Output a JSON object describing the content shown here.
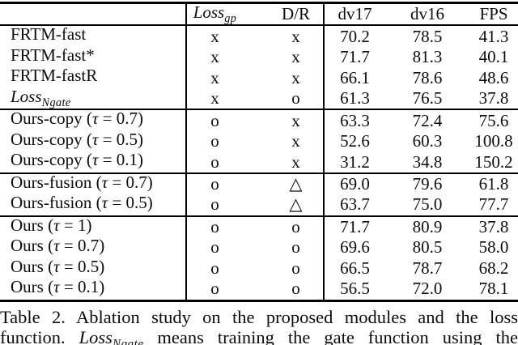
{
  "page": {
    "background": "#ffffff",
    "text_color": "#0d0d0d",
    "rule_color": "#000000"
  },
  "table": {
    "header": {
      "loss_gp": {
        "math": "Loss",
        "sub": "gp"
      },
      "dr": "D/R",
      "dv17": "dv17",
      "dv16": "dv16",
      "fps": "FPS"
    },
    "groups": [
      {
        "rows": [
          {
            "label": {
              "pre": "FRTM-fast"
            },
            "m1": "x",
            "m2": "x",
            "v1": "70.2",
            "v2": "78.5",
            "v3": "41.3"
          },
          {
            "label": {
              "pre": "FRTM-fast*"
            },
            "m1": "x",
            "m2": "x",
            "v1": "71.7",
            "v2": "81.3",
            "v3": "40.1"
          },
          {
            "label": {
              "pre": "FRTM-fastR"
            },
            "m1": "x",
            "m2": "x",
            "v1": "66.1",
            "v2": "78.6",
            "v3": "48.6"
          },
          {
            "label": {
              "math": "Loss",
              "sub": "Ngate"
            },
            "m1": "x",
            "m2": "o",
            "v1": "61.3",
            "v2": "76.5",
            "v3": "37.8"
          }
        ]
      },
      {
        "rows": [
          {
            "label": {
              "pre": "Ours-copy (",
              "math": "τ",
              "post": " = 0.7)"
            },
            "m1": "o",
            "m2": "x",
            "v1": "63.3",
            "v2": "72.4",
            "v3": "75.6"
          },
          {
            "label": {
              "pre": "Ours-copy (",
              "math": "τ",
              "post": " = 0.5)"
            },
            "m1": "o",
            "m2": "x",
            "v1": "52.6",
            "v2": "60.3",
            "v3": "100.8"
          },
          {
            "label": {
              "pre": "Ours-copy (",
              "math": "τ",
              "post": " = 0.1)"
            },
            "m1": "o",
            "m2": "x",
            "v1": "31.2",
            "v2": "34.8",
            "v3": "150.2"
          }
        ]
      },
      {
        "rows": [
          {
            "label": {
              "pre": "Ours-fusion (",
              "math": "τ",
              "post": " = 0.7)"
            },
            "m1": "o",
            "m2": "△",
            "v1": "69.0",
            "v2": "79.6",
            "v3": "61.8"
          },
          {
            "label": {
              "pre": "Ours-fusion (",
              "math": "τ",
              "post": " = 0.5)"
            },
            "m1": "o",
            "m2": "△",
            "v1": "63.7",
            "v2": "75.0",
            "v3": "77.7"
          }
        ]
      },
      {
        "rows": [
          {
            "label": {
              "pre": "Ours (",
              "math": "τ",
              "post": " = 1)"
            },
            "m1": "o",
            "m2": "o",
            "v1": "71.7",
            "v2": "80.9",
            "v3": "37.8"
          },
          {
            "label": {
              "pre": "Ours (",
              "math": "τ",
              "post": " = 0.7)"
            },
            "m1": "o",
            "m2": "o",
            "v1": "69.6",
            "v2": "80.5",
            "v3": "58.0"
          },
          {
            "label": {
              "pre": "Ours (",
              "math": "τ",
              "post": " = 0.5)"
            },
            "m1": "o",
            "m2": "o",
            "v1": "66.5",
            "v2": "78.7",
            "v3": "68.2"
          },
          {
            "label": {
              "pre": "Ours (",
              "math": "τ",
              "post": " = 0.1)"
            },
            "m1": "o",
            "m2": "o",
            "v1": "56.5",
            "v2": "72.0",
            "v3": "78.1"
          }
        ]
      }
    ]
  },
  "caption": {
    "line1": "Table 2. Ablation study on the proposed modules and the loss",
    "line2": {
      "pre": "function. ",
      "math": "Loss",
      "sub": "Ngate",
      "post": " means training the gate function using the"
    }
  }
}
